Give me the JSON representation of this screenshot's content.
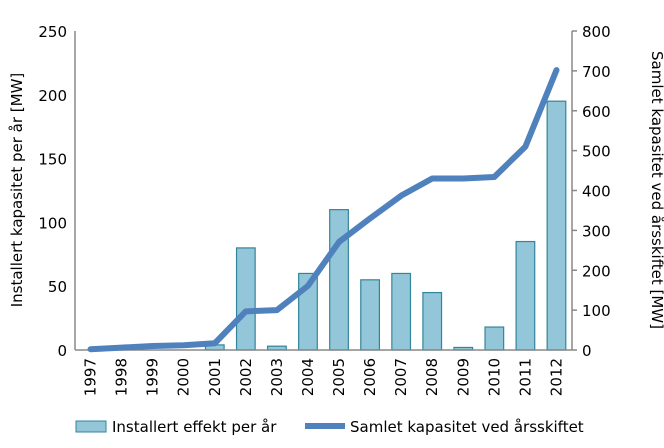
{
  "chart_data": {
    "type": "bar+line",
    "categories": [
      "1997",
      "1998",
      "1999",
      "2000",
      "2001",
      "2002",
      "2003",
      "2004",
      "2005",
      "2006",
      "2007",
      "2008",
      "2009",
      "2010",
      "2011",
      "2012"
    ],
    "series": [
      {
        "name": "Installert effekt per år",
        "type": "bar",
        "axis": "left",
        "color": "#93c6d8",
        "values": [
          0,
          0,
          0,
          0,
          4,
          80,
          3,
          60,
          110,
          55,
          60,
          45,
          2,
          18,
          85,
          195
        ]
      },
      {
        "name": "Samlet kapasitet ved årsskiftet",
        "type": "line",
        "axis": "right",
        "color": "#4f81bd",
        "values": [
          2,
          6,
          10,
          12,
          17,
          97,
          100,
          161,
          271,
          330,
          387,
          430,
          430,
          434,
          510,
          702
        ]
      }
    ],
    "ylabel": "Installert kapasitet per år [MW]",
    "y2label": "Samlet kapasitet ved årsskiftet [MW]",
    "ylim": [
      0,
      250
    ],
    "y2lim": [
      0,
      800
    ],
    "yticks": [
      "0",
      "50",
      "100",
      "150",
      "200",
      "250"
    ],
    "y2ticks": [
      "0",
      "100",
      "200",
      "300",
      "400",
      "500",
      "600",
      "700",
      "800"
    ],
    "grid": false,
    "legend": "bottom"
  }
}
